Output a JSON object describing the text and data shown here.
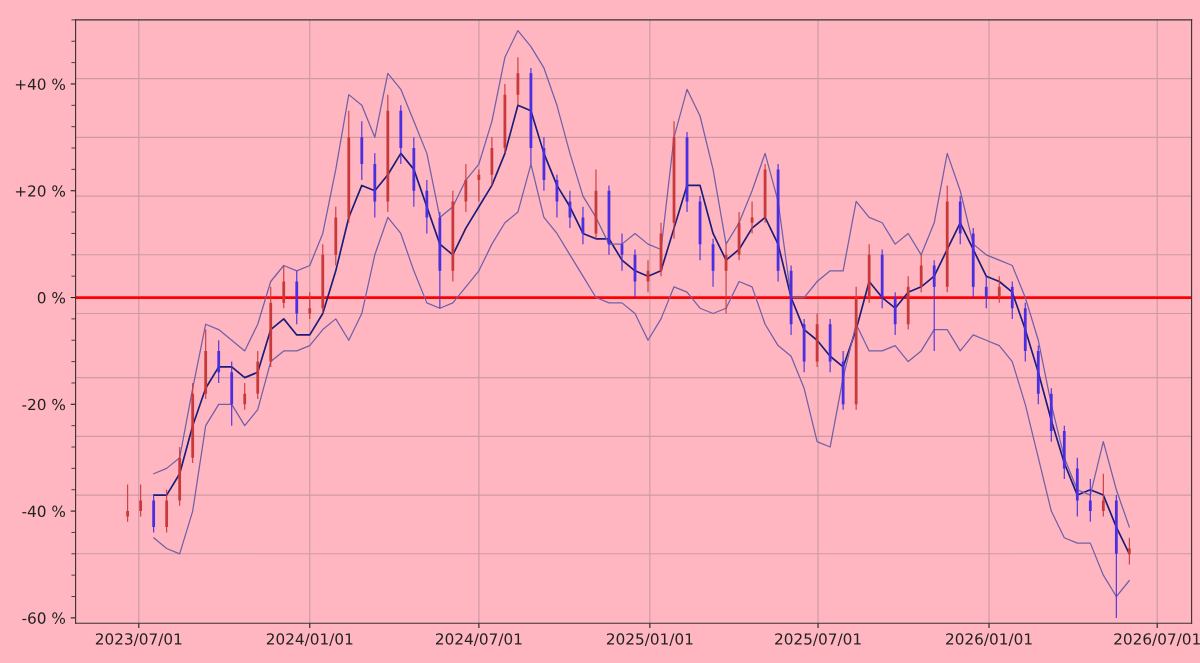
{
  "chart_data": {
    "type": "candlestick",
    "x": [
      "2023-06-19",
      "2023-07-03",
      "2023-07-17",
      "2023-07-31",
      "2023-08-14",
      "2023-08-28",
      "2023-09-11",
      "2023-09-25",
      "2023-10-09",
      "2023-10-23",
      "2023-11-06",
      "2023-11-20",
      "2023-12-04",
      "2023-12-18",
      "2024-01-01",
      "2024-01-15",
      "2024-01-29",
      "2024-02-12",
      "2024-02-26",
      "2024-03-11",
      "2024-03-25",
      "2024-04-08",
      "2024-04-22",
      "2024-05-06",
      "2024-05-20",
      "2024-06-03",
      "2024-06-17",
      "2024-07-01",
      "2024-07-15",
      "2024-07-29",
      "2024-08-12",
      "2024-08-26",
      "2024-09-09",
      "2024-09-23",
      "2024-10-07",
      "2024-10-21",
      "2024-11-04",
      "2024-11-18",
      "2024-12-02",
      "2024-12-16",
      "2024-12-30",
      "2025-01-13",
      "2025-01-27",
      "2025-02-10",
      "2025-02-24",
      "2025-03-10",
      "2025-03-24",
      "2025-04-07",
      "2025-04-21",
      "2025-05-05",
      "2025-05-19",
      "2025-06-02",
      "2025-06-16",
      "2025-06-30",
      "2025-07-14",
      "2025-07-28",
      "2025-08-11",
      "2025-08-25",
      "2025-09-08",
      "2025-09-22",
      "2025-10-06",
      "2025-10-20",
      "2025-11-03",
      "2025-11-17",
      "2025-12-01",
      "2025-12-15",
      "2025-12-29",
      "2026-01-12",
      "2026-01-26",
      "2026-02-09",
      "2026-02-23",
      "2026-03-09",
      "2026-03-23",
      "2026-04-06",
      "2026-04-20",
      "2026-05-04",
      "2026-05-18",
      "2026-06-01"
    ],
    "ohlc": [
      [
        -41,
        -35,
        -42,
        -40
      ],
      [
        -40,
        -35,
        -41,
        -38
      ],
      [
        -38,
        -37,
        -44,
        -43
      ],
      [
        -43,
        -36,
        -44,
        -38
      ],
      [
        -38,
        -28,
        -39,
        -30
      ],
      [
        -30,
        -16,
        -31,
        -18
      ],
      [
        -18,
        -6,
        -19,
        -10
      ],
      [
        -10,
        -8,
        -16,
        -14
      ],
      [
        -14,
        -12,
        -24,
        -20
      ],
      [
        -20,
        -16,
        -21,
        -18
      ],
      [
        -18,
        -10,
        -19,
        -12
      ],
      [
        -12,
        2,
        -13,
        -1
      ],
      [
        -1,
        6,
        -2,
        3
      ],
      [
        3,
        5,
        -5,
        -3
      ],
      [
        -3,
        1,
        -4,
        -2
      ],
      [
        -2,
        10,
        -3,
        8
      ],
      [
        8,
        17,
        6,
        15
      ],
      [
        15,
        35,
        14,
        30
      ],
      [
        30,
        33,
        22,
        25
      ],
      [
        25,
        27,
        15,
        18
      ],
      [
        18,
        38,
        16,
        35
      ],
      [
        35,
        36,
        25,
        28
      ],
      [
        28,
        30,
        17,
        20
      ],
      [
        20,
        22,
        12,
        15
      ],
      [
        15,
        16,
        -2,
        5
      ],
      [
        5,
        20,
        3,
        18
      ],
      [
        18,
        25,
        16,
        22
      ],
      [
        22,
        24,
        18,
        23
      ],
      [
        23,
        30,
        21,
        28
      ],
      [
        28,
        40,
        27,
        38
      ],
      [
        38,
        45,
        36,
        42
      ],
      [
        42,
        43,
        25,
        28
      ],
      [
        28,
        30,
        20,
        22
      ],
      [
        22,
        23,
        15,
        18
      ],
      [
        18,
        20,
        13,
        15
      ],
      [
        15,
        17,
        10,
        12
      ],
      [
        12,
        24,
        11,
        20
      ],
      [
        20,
        21,
        8,
        10
      ],
      [
        10,
        12,
        5,
        8
      ],
      [
        8,
        9,
        0,
        3
      ],
      [
        3,
        7,
        1,
        5
      ],
      [
        5,
        14,
        4,
        12
      ],
      [
        14,
        33,
        11,
        30
      ],
      [
        30,
        31,
        16,
        18
      ],
      [
        18,
        19,
        7,
        10
      ],
      [
        10,
        11,
        2,
        5
      ],
      [
        5,
        10,
        -3,
        8
      ],
      [
        8,
        16,
        7,
        14
      ],
      [
        14,
        18,
        12,
        15
      ],
      [
        15,
        25,
        14,
        24
      ],
      [
        24,
        25,
        3,
        5
      ],
      [
        5,
        6,
        -7,
        -5
      ],
      [
        -5,
        -4,
        -14,
        -12
      ],
      [
        -12,
        -3,
        -13,
        -5
      ],
      [
        -5,
        -4,
        -14,
        -12
      ],
      [
        -12,
        -10,
        -21,
        -20
      ],
      [
        -20,
        2,
        -21,
        0
      ],
      [
        0,
        10,
        -1,
        8
      ],
      [
        8,
        9,
        -2,
        0
      ],
      [
        0,
        1,
        -7,
        -5
      ],
      [
        -5,
        4,
        -6,
        2
      ],
      [
        2,
        8,
        1,
        6
      ],
      [
        6,
        7,
        -10,
        2
      ],
      [
        2,
        21,
        1,
        18
      ],
      [
        18,
        19,
        10,
        12
      ],
      [
        12,
        13,
        0,
        2
      ],
      [
        2,
        4,
        -2,
        0
      ],
      [
        0,
        4,
        -1,
        2
      ],
      [
        2,
        3,
        -4,
        -2
      ],
      [
        -2,
        -1,
        -12,
        -10
      ],
      [
        -10,
        -9,
        -20,
        -18
      ],
      [
        -18,
        -17,
        -27,
        -25
      ],
      [
        -25,
        -24,
        -34,
        -32
      ],
      [
        -32,
        -30,
        -41,
        -38
      ],
      [
        -38,
        -34,
        -42,
        -40
      ],
      [
        -40,
        -33,
        -41,
        -38
      ],
      [
        -38,
        -37,
        -60,
        -48
      ],
      [
        -48,
        -45,
        -50,
        -47
      ]
    ],
    "colors": [
      "#c83a3a",
      "#c83a3a",
      "#4a2ee0",
      "#c83a3a",
      "#c83a3a",
      "#c83a3a",
      "#c83a3a",
      "#4a2ee0",
      "#4a2ee0",
      "#c83a3a",
      "#c83a3a",
      "#c83a3a",
      "#c83a3a",
      "#4a2ee0",
      "#c83a3a",
      "#c83a3a",
      "#c83a3a",
      "#c83a3a",
      "#4a2ee0",
      "#4a2ee0",
      "#c83a3a",
      "#4a2ee0",
      "#4a2ee0",
      "#4a2ee0",
      "#4a2ee0",
      "#c83a3a",
      "#c83a3a",
      "#c83a3a",
      "#c83a3a",
      "#c83a3a",
      "#c83a3a",
      "#4a2ee0",
      "#4a2ee0",
      "#4a2ee0",
      "#4a2ee0",
      "#4a2ee0",
      "#c83a3a",
      "#4a2ee0",
      "#4a2ee0",
      "#4a2ee0",
      "#c83a3a",
      "#c83a3a",
      "#c83a3a",
      "#4a2ee0",
      "#4a2ee0",
      "#4a2ee0",
      "#c83a3a",
      "#c83a3a",
      "#c83a3a",
      "#c83a3a",
      "#4a2ee0",
      "#4a2ee0",
      "#4a2ee0",
      "#c83a3a",
      "#4a2ee0",
      "#4a2ee0",
      "#c83a3a",
      "#c83a3a",
      "#4a2ee0",
      "#4a2ee0",
      "#c83a3a",
      "#c83a3a",
      "#4a2ee0",
      "#c83a3a",
      "#4a2ee0",
      "#4a2ee0",
      "#4a2ee0",
      "#c83a3a",
      "#4a2ee0",
      "#4a2ee0",
      "#4a2ee0",
      "#4a2ee0",
      "#4a2ee0",
      "#4a2ee0",
      "#4a2ee0",
      "#c83a3a",
      "#4a2ee0",
      "#c83a3a"
    ],
    "series": [
      {
        "type": "line",
        "color": "#1c1c7a",
        "values": [
          null,
          null,
          -37,
          -37,
          -33,
          -24,
          -17,
          -13,
          -13,
          -15,
          -14,
          -6,
          -4,
          -7,
          -7,
          -3,
          5,
          15,
          21,
          20,
          23,
          27,
          24,
          17,
          10,
          8,
          13,
          17,
          21,
          27,
          36,
          35,
          27,
          21,
          17,
          12,
          11,
          11,
          7,
          5,
          4,
          5,
          13,
          21,
          21,
          12,
          7,
          9,
          13,
          15,
          10,
          0,
          -6,
          -8,
          -11,
          -13,
          -6,
          3,
          0,
          -2,
          1,
          2,
          4,
          9,
          14,
          9,
          4,
          3,
          1,
          -6,
          -14,
          -23,
          -31,
          -37,
          -36,
          -37,
          -43,
          -48
        ]
      },
      {
        "type": "line",
        "color": "#7060a8",
        "values": [
          null,
          null,
          -33,
          -32,
          -30,
          -17,
          -5,
          -6,
          -8,
          -10,
          -5,
          3,
          6,
          5,
          6,
          12,
          24,
          38,
          36,
          30,
          42,
          39,
          33,
          27,
          15,
          17,
          22,
          25,
          33,
          45,
          50,
          47,
          43,
          36,
          27,
          19,
          15,
          10,
          10,
          12,
          10,
          9,
          30,
          39,
          34,
          24,
          10,
          14,
          20,
          27,
          18,
          0,
          0,
          3,
          5,
          5,
          18,
          15,
          14,
          10,
          12,
          8,
          14,
          27,
          20,
          10,
          8,
          7,
          6,
          0,
          -8,
          -20,
          -30,
          -36,
          -37,
          -27,
          -36,
          -43
        ]
      },
      {
        "type": "line",
        "color": "#7060a8",
        "values": [
          null,
          null,
          -45,
          -47,
          -48,
          -40,
          -24,
          -20,
          -20,
          -24,
          -21,
          -12,
          -10,
          -10,
          -9,
          -6,
          -4,
          -8,
          -3,
          8,
          15,
          12,
          5,
          -1,
          -2,
          -1,
          2,
          5,
          10,
          14,
          16,
          25,
          15,
          12,
          8,
          4,
          0,
          -1,
          -1,
          -3,
          -8,
          -4,
          2,
          1,
          -2,
          -3,
          -2,
          3,
          2,
          -5,
          -9,
          -11,
          -17,
          -27,
          -28,
          -15,
          -5,
          -10,
          -10,
          -9,
          -12,
          -10,
          -6,
          -6,
          -10,
          -7,
          -8,
          -9,
          -12,
          -20,
          -30,
          -40,
          -45,
          -46,
          -46,
          -52,
          -56,
          -53
        ]
      }
    ],
    "xlim": [
      "2023-04-24",
      "2026-08-07"
    ],
    "xticks": [
      {
        "value": "2023-07-01",
        "label": "2023/07/01"
      },
      {
        "value": "2024-01-01",
        "label": "2024/01/01"
      },
      {
        "value": "2024-07-01",
        "label": "2024/07/01"
      },
      {
        "value": "2025-01-01",
        "label": "2025/01/01"
      },
      {
        "value": "2025-07-01",
        "label": "2025/07/01"
      },
      {
        "value": "2026-01-01",
        "label": "2026/01/01"
      },
      {
        "value": "2026-07-01",
        "label": "2026/07/01"
      }
    ],
    "ylim": [
      -61,
      52
    ],
    "yticks": [
      {
        "value": -60,
        "label": "-60 %"
      },
      {
        "value": -40,
        "label": "-40 %"
      },
      {
        "value": -20,
        "label": "-20 %"
      },
      {
        "value": 0,
        "label": "0 %"
      },
      {
        "value": 20,
        "label": "+20 %"
      },
      {
        "value": 40,
        "label": "+40 %"
      }
    ],
    "ref_lines": [
      {
        "axis": "y",
        "value": 41,
        "color": "#d09aa4"
      },
      {
        "axis": "y",
        "value": 30,
        "color": "#d09aa4"
      },
      {
        "axis": "y",
        "value": 19,
        "color": "#d09aa4"
      },
      {
        "axis": "y",
        "value": 8,
        "color": "#d09aa4"
      },
      {
        "axis": "y",
        "value": -3,
        "color": "#d09aa4"
      },
      {
        "axis": "y",
        "value": -15,
        "color": "#d09aa4"
      },
      {
        "axis": "y",
        "value": -26,
        "color": "#d09aa4"
      },
      {
        "axis": "y",
        "value": -37,
        "color": "#d09aa4"
      },
      {
        "axis": "y",
        "value": -48,
        "color": "#d09aa4"
      },
      {
        "axis": "y",
        "value": 0,
        "color": "#ff0000"
      }
    ],
    "grid": "x"
  }
}
